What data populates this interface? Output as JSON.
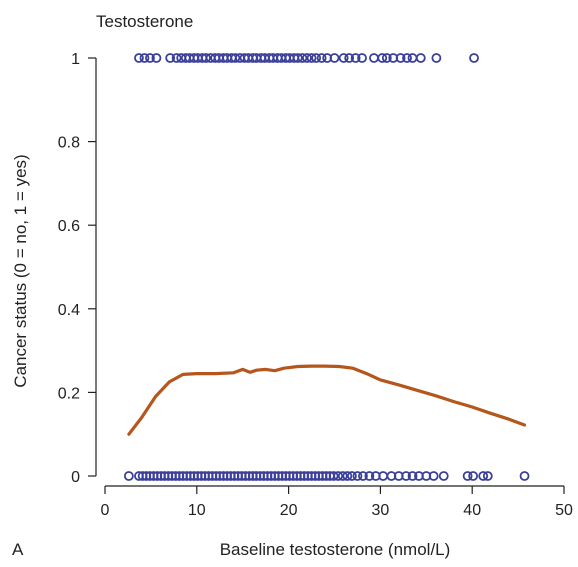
{
  "chart_data": {
    "type": "scatter",
    "title": "Testosterone",
    "panel_label": "A",
    "xlabel": "Baseline testosterone (nmol/L)",
    "ylabel": "Cancer status (0 = no, 1 = yes)",
    "xlim": [
      0,
      50
    ],
    "ylim": [
      0,
      1
    ],
    "xticks": [
      0,
      10,
      20,
      30,
      40,
      50
    ],
    "yticks": [
      0,
      0.2,
      0.4,
      0.6,
      0.8,
      1
    ],
    "ytick_labels": [
      "0",
      "0.2",
      "0.4",
      "0.6",
      "0.8",
      "1"
    ],
    "grid": false,
    "colors": {
      "points": "#3a3f9a",
      "curve": "#b5561b",
      "axis": "#222222"
    },
    "series": [
      {
        "type": "scatter",
        "y_value": 1,
        "x": [
          3.7,
          4.3,
          4.9,
          5.6,
          7.1,
          7.8,
          8.3,
          8.8,
          9.2,
          9.7,
          10.1,
          10.6,
          11.0,
          11.5,
          12.0,
          12.4,
          12.9,
          13.3,
          13.8,
          14.2,
          14.7,
          15.2,
          15.6,
          16.1,
          16.5,
          17.0,
          17.4,
          17.9,
          18.3,
          18.8,
          19.2,
          19.7,
          20.1,
          20.6,
          21.0,
          21.5,
          22.0,
          22.5,
          23.0,
          23.6,
          24.2,
          25.0,
          26.0,
          26.6,
          27.3,
          28.0,
          29.3,
          30.2,
          30.7,
          31.4,
          32.2,
          32.9,
          33.5,
          34.4,
          36.1,
          40.2
        ]
      },
      {
        "type": "scatter",
        "y_value": 0,
        "x": [
          2.6,
          3.7,
          4.1,
          4.5,
          4.9,
          5.3,
          5.7,
          6.1,
          6.5,
          6.9,
          7.3,
          7.7,
          8.1,
          8.5,
          8.9,
          9.3,
          9.7,
          10.1,
          10.5,
          10.9,
          11.3,
          11.7,
          12.1,
          12.5,
          12.9,
          13.3,
          13.7,
          14.1,
          14.5,
          14.9,
          15.3,
          15.7,
          16.1,
          16.5,
          16.9,
          17.3,
          17.7,
          18.1,
          18.5,
          18.9,
          19.3,
          19.7,
          20.1,
          20.5,
          20.9,
          21.3,
          21.7,
          22.1,
          22.5,
          22.9,
          23.3,
          23.7,
          24.1,
          24.5,
          24.9,
          25.4,
          25.9,
          26.4,
          26.9,
          27.5,
          28.1,
          28.8,
          29.5,
          30.3,
          31.2,
          32.0,
          32.8,
          33.5,
          34.2,
          35.0,
          35.8,
          36.9,
          39.5,
          40.1,
          41.2,
          41.7,
          45.7
        ]
      },
      {
        "type": "line",
        "points": [
          [
            2.6,
            0.1
          ],
          [
            4.0,
            0.14
          ],
          [
            5.5,
            0.19
          ],
          [
            7.0,
            0.225
          ],
          [
            8.5,
            0.243
          ],
          [
            10.0,
            0.245
          ],
          [
            12.0,
            0.245
          ],
          [
            14.0,
            0.247
          ],
          [
            15.0,
            0.255
          ],
          [
            15.8,
            0.248
          ],
          [
            16.5,
            0.253
          ],
          [
            17.5,
            0.255
          ],
          [
            18.5,
            0.252
          ],
          [
            19.5,
            0.258
          ],
          [
            21.0,
            0.262
          ],
          [
            22.5,
            0.263
          ],
          [
            24.0,
            0.263
          ],
          [
            25.5,
            0.262
          ],
          [
            27.0,
            0.258
          ],
          [
            28.5,
            0.245
          ],
          [
            30.0,
            0.23
          ],
          [
            32.0,
            0.218
          ],
          [
            34.0,
            0.205
          ],
          [
            36.0,
            0.192
          ],
          [
            38.0,
            0.178
          ],
          [
            40.0,
            0.165
          ],
          [
            42.0,
            0.15
          ],
          [
            44.0,
            0.136
          ],
          [
            45.7,
            0.122
          ]
        ]
      }
    ]
  }
}
